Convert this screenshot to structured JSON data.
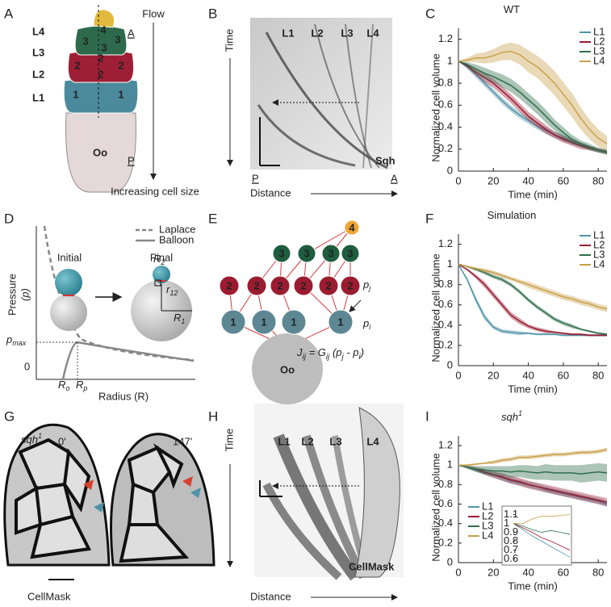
{
  "panel_labels": [
    "A",
    "B",
    "C",
    "D",
    "E",
    "F",
    "G",
    "H",
    "I"
  ],
  "panel_a": {
    "flow": "Flow",
    "increasing": "Increasing cell size",
    "layers": [
      "L4",
      "L3",
      "L2",
      "L1"
    ],
    "anterior": "A",
    "posterior": "P",
    "oocyte": "Oo",
    "cells": [
      "4",
      "3",
      "3",
      "3",
      "2",
      "2",
      "2",
      "2",
      "1",
      "1"
    ]
  },
  "panel_b": {
    "y_axis": "Time",
    "x_axis": "Distance",
    "layers": [
      "L1",
      "L2",
      "L3",
      "L4"
    ],
    "stain": "Sqh",
    "posterior": "P",
    "anterior": "A"
  },
  "panel_d": {
    "y_axis": "Pressure",
    "y_axis_symbol": "(p)",
    "x_axis": "Radius (R)",
    "legend": [
      "Laplace",
      "Balloon"
    ],
    "initial": "Initial",
    "final": "Final",
    "zero": "0",
    "p_max": {
      "base": "p",
      "sub": "max"
    },
    "r_o": {
      "base": "R",
      "sub": "o"
    },
    "r_p": {
      "base": "R",
      "sub": "p"
    },
    "r_1": {
      "base": "R",
      "sub": "1"
    },
    "r_2": {
      "base": "R",
      "sub": "2"
    },
    "r_12": {
      "base": "r",
      "sub": "12"
    }
  },
  "panel_e": {
    "nodes": [
      "4",
      "3",
      "3",
      "3",
      "3",
      "2",
      "2",
      "2",
      "2",
      "2",
      "2",
      "1",
      "1",
      "1",
      "1"
    ],
    "oocyte": "Oo",
    "p_j": {
      "base": "p",
      "sub": "j"
    },
    "p_i": {
      "base": "p",
      "sub": "i"
    },
    "equation": [
      "J",
      "ij",
      " = G",
      "ij",
      " (p",
      "j",
      " - p",
      "i",
      ")"
    ]
  },
  "panel_g": {
    "genotype": "sqh",
    "genotype_sup": "1",
    "times": [
      "0'",
      "147'"
    ],
    "stain": "CellMask"
  },
  "panel_h": {
    "y_axis": "Time",
    "x_axis": "Distance",
    "layers": [
      "L1",
      "L2",
      "L3",
      "L4"
    ],
    "stain": "CellMask"
  },
  "chart_data": [
    {
      "type": "line",
      "title": "WT",
      "x_label": "Time (min)",
      "y_label": "Normalized cell volume",
      "x": [
        0,
        5,
        10,
        15,
        20,
        25,
        30,
        35,
        40,
        45,
        50,
        55,
        60,
        65,
        70,
        75,
        80,
        85
      ],
      "xlim": [
        0,
        85
      ],
      "xticks": [
        0,
        20,
        40,
        60,
        80
      ],
      "ylim": [
        0,
        1.3
      ],
      "yticks": [
        0,
        0.2,
        0.4,
        0.6,
        0.8,
        1,
        1.2
      ],
      "series": [
        {
          "name": "L1",
          "color": "#4f93a8",
          "values": [
            1,
            0.95,
            0.88,
            0.8,
            0.72,
            0.64,
            0.57,
            0.51,
            0.46,
            0.41,
            0.37,
            0.33,
            0.3,
            0.27,
            0.24,
            0.21,
            0.19,
            0.18
          ],
          "errors": [
            0,
            0.02,
            0.03,
            0.03,
            0.03,
            0.03,
            0.03,
            0.03,
            0.03,
            0.03,
            0.03,
            0.03,
            0.03,
            0.03,
            0.02,
            0.02,
            0.02,
            0.02
          ]
        },
        {
          "name": "L2",
          "color": "#9b1c33",
          "values": [
            1,
            0.96,
            0.9,
            0.85,
            0.8,
            0.73,
            0.66,
            0.58,
            0.5,
            0.44,
            0.38,
            0.33,
            0.29,
            0.26,
            0.23,
            0.21,
            0.19,
            0.17
          ],
          "errors": [
            0,
            0.02,
            0.03,
            0.04,
            0.04,
            0.04,
            0.04,
            0.04,
            0.04,
            0.04,
            0.04,
            0.03,
            0.03,
            0.03,
            0.03,
            0.02,
            0.02,
            0.02
          ]
        },
        {
          "name": "L3",
          "color": "#2f6e4c",
          "values": [
            1,
            0.97,
            0.93,
            0.89,
            0.86,
            0.82,
            0.78,
            0.72,
            0.65,
            0.58,
            0.5,
            0.42,
            0.35,
            0.29,
            0.25,
            0.22,
            0.19,
            0.17
          ],
          "errors": [
            0,
            0.02,
            0.04,
            0.05,
            0.05,
            0.06,
            0.06,
            0.06,
            0.06,
            0.06,
            0.06,
            0.05,
            0.05,
            0.04,
            0.03,
            0.03,
            0.02,
            0.02
          ]
        },
        {
          "name": "L4",
          "color": "#c9a14a",
          "values": [
            1,
            1.01,
            1.03,
            1.03,
            1.05,
            1.08,
            1.09,
            1.06,
            1.0,
            0.95,
            0.88,
            0.8,
            0.7,
            0.6,
            0.48,
            0.38,
            0.3,
            0.25
          ],
          "errors": [
            0,
            0.02,
            0.04,
            0.05,
            0.06,
            0.07,
            0.08,
            0.09,
            0.1,
            0.1,
            0.11,
            0.11,
            0.11,
            0.11,
            0.1,
            0.09,
            0.08,
            0.07
          ]
        }
      ]
    },
    {
      "type": "line",
      "title": "Simulation",
      "x_label": "Time (min)",
      "y_label": "Normalized cell volume",
      "x": [
        0,
        5,
        10,
        15,
        20,
        25,
        30,
        35,
        40,
        45,
        50,
        55,
        60,
        65,
        70,
        75,
        80,
        85
      ],
      "xlim": [
        0,
        85
      ],
      "xticks": [
        0,
        20,
        40,
        60,
        80
      ],
      "ylim": [
        0,
        1.3
      ],
      "yticks": [
        0,
        0.2,
        0.4,
        0.6,
        0.8,
        1,
        1.2
      ],
      "series": [
        {
          "name": "L1",
          "color": "#4f93a8",
          "values": [
            1,
            0.85,
            0.65,
            0.48,
            0.38,
            0.34,
            0.33,
            0.32,
            0.32,
            0.31,
            0.31,
            0.31,
            0.3,
            0.3,
            0.3,
            0.3,
            0.3,
            0.3
          ],
          "errors": [
            0,
            0.02,
            0.03,
            0.03,
            0.02,
            0.02,
            0.02,
            0.02,
            0.01,
            0.01,
            0.01,
            0.01,
            0.01,
            0.01,
            0.01,
            0.01,
            0.01,
            0.01
          ]
        },
        {
          "name": "L2",
          "color": "#9b1c33",
          "values": [
            1,
            0.95,
            0.88,
            0.8,
            0.7,
            0.6,
            0.5,
            0.44,
            0.39,
            0.36,
            0.34,
            0.33,
            0.32,
            0.31,
            0.31,
            0.3,
            0.3,
            0.3
          ],
          "errors": [
            0,
            0.01,
            0.02,
            0.03,
            0.03,
            0.03,
            0.03,
            0.03,
            0.02,
            0.02,
            0.02,
            0.01,
            0.01,
            0.01,
            0.01,
            0.01,
            0.01,
            0.01
          ]
        },
        {
          "name": "L3",
          "color": "#2f6e4c",
          "values": [
            1,
            0.98,
            0.95,
            0.92,
            0.88,
            0.85,
            0.8,
            0.73,
            0.65,
            0.58,
            0.52,
            0.46,
            0.42,
            0.39,
            0.36,
            0.34,
            0.32,
            0.31
          ],
          "errors": [
            0,
            0.01,
            0.01,
            0.02,
            0.02,
            0.02,
            0.02,
            0.02,
            0.02,
            0.02,
            0.02,
            0.02,
            0.02,
            0.02,
            0.01,
            0.01,
            0.01,
            0.01
          ]
        },
        {
          "name": "L4",
          "color": "#c9a14a",
          "values": [
            1,
            0.98,
            0.96,
            0.94,
            0.92,
            0.89,
            0.86,
            0.83,
            0.8,
            0.77,
            0.74,
            0.71,
            0.68,
            0.66,
            0.63,
            0.61,
            0.58,
            0.56
          ],
          "errors": [
            0,
            0.01,
            0.01,
            0.02,
            0.02,
            0.02,
            0.02,
            0.02,
            0.03,
            0.03,
            0.03,
            0.03,
            0.03,
            0.03,
            0.03,
            0.03,
            0.03,
            0.03
          ]
        }
      ]
    },
    {
      "type": "line",
      "title": "sqh",
      "title_sup": "1",
      "x_label": "Time (min)",
      "y_label": "Normalized cell volume",
      "x": [
        0,
        5,
        10,
        15,
        20,
        25,
        30,
        35,
        40,
        45,
        50,
        55,
        60,
        65,
        70,
        75,
        80,
        85
      ],
      "xlim": [
        0,
        85
      ],
      "xticks": [
        0,
        20,
        40,
        60,
        80
      ],
      "ylim": [
        0,
        1.3
      ],
      "yticks": [
        0,
        0.2,
        0.4,
        0.6,
        0.8,
        1,
        1.2
      ],
      "series": [
        {
          "name": "L1",
          "color": "#4f93a8",
          "values": [
            1,
            0.98,
            0.95,
            0.92,
            0.9,
            0.87,
            0.84,
            0.82,
            0.8,
            0.78,
            0.75,
            0.73,
            0.71,
            0.69,
            0.67,
            0.65,
            0.63,
            0.6
          ],
          "errors": [
            0,
            0.01,
            0.02,
            0.02,
            0.03,
            0.03,
            0.03,
            0.03,
            0.03,
            0.03,
            0.03,
            0.03,
            0.03,
            0.03,
            0.03,
            0.03,
            0.03,
            0.03
          ]
        },
        {
          "name": "L2",
          "color": "#9b1c33",
          "values": [
            1,
            0.98,
            0.96,
            0.93,
            0.9,
            0.88,
            0.85,
            0.83,
            0.8,
            0.78,
            0.76,
            0.74,
            0.72,
            0.7,
            0.68,
            0.66,
            0.64,
            0.62
          ],
          "errors": [
            0,
            0.01,
            0.02,
            0.03,
            0.03,
            0.04,
            0.04,
            0.04,
            0.04,
            0.04,
            0.04,
            0.04,
            0.04,
            0.04,
            0.04,
            0.04,
            0.04,
            0.04
          ]
        },
        {
          "name": "L3",
          "color": "#2f6e4c",
          "values": [
            1,
            0.98,
            0.96,
            0.95,
            0.94,
            0.94,
            0.93,
            0.94,
            0.93,
            0.92,
            0.93,
            0.92,
            0.92,
            0.92,
            0.91,
            0.92,
            0.93,
            0.92
          ],
          "errors": [
            0,
            0.02,
            0.03,
            0.04,
            0.05,
            0.05,
            0.06,
            0.06,
            0.07,
            0.07,
            0.08,
            0.08,
            0.08,
            0.08,
            0.09,
            0.09,
            0.09,
            0.09
          ]
        },
        {
          "name": "L4",
          "color": "#c9a14a",
          "values": [
            1,
            1,
            1.01,
            1.02,
            1.03,
            1.05,
            1.06,
            1.08,
            1.08,
            1.09,
            1.1,
            1.11,
            1.11,
            1.12,
            1.13,
            1.13,
            1.14,
            1.16
          ],
          "errors": [
            0,
            0.01,
            0.01,
            0.01,
            0.02,
            0.02,
            0.02,
            0.02,
            0.02,
            0.02,
            0.02,
            0.02,
            0.02,
            0.02,
            0.02,
            0.02,
            0.02,
            0.02
          ]
        }
      ]
    },
    {
      "type": "line",
      "x": [
        0,
        10,
        20,
        30,
        40,
        50,
        60
      ],
      "xlim": [
        0,
        60
      ],
      "ylim": [
        0.55,
        1.15
      ],
      "yticks": [
        0.6,
        0.7,
        0.8,
        0.9,
        1,
        1.1
      ],
      "series": [
        {
          "color": "#4f93a8",
          "values": [
            1,
            0.93,
            0.86,
            0.8,
            0.74,
            0.68,
            0.62
          ]
        },
        {
          "color": "#9b1c33",
          "values": [
            1,
            0.95,
            0.9,
            0.84,
            0.8,
            0.75,
            0.7
          ]
        },
        {
          "color": "#2f6e4c",
          "values": [
            1,
            0.97,
            0.93,
            0.9,
            0.92,
            0.9,
            0.88
          ]
        },
        {
          "color": "#c9a14a",
          "values": [
            1,
            1,
            1.05,
            1.08,
            1.08,
            1.09,
            1.1
          ]
        }
      ]
    }
  ]
}
